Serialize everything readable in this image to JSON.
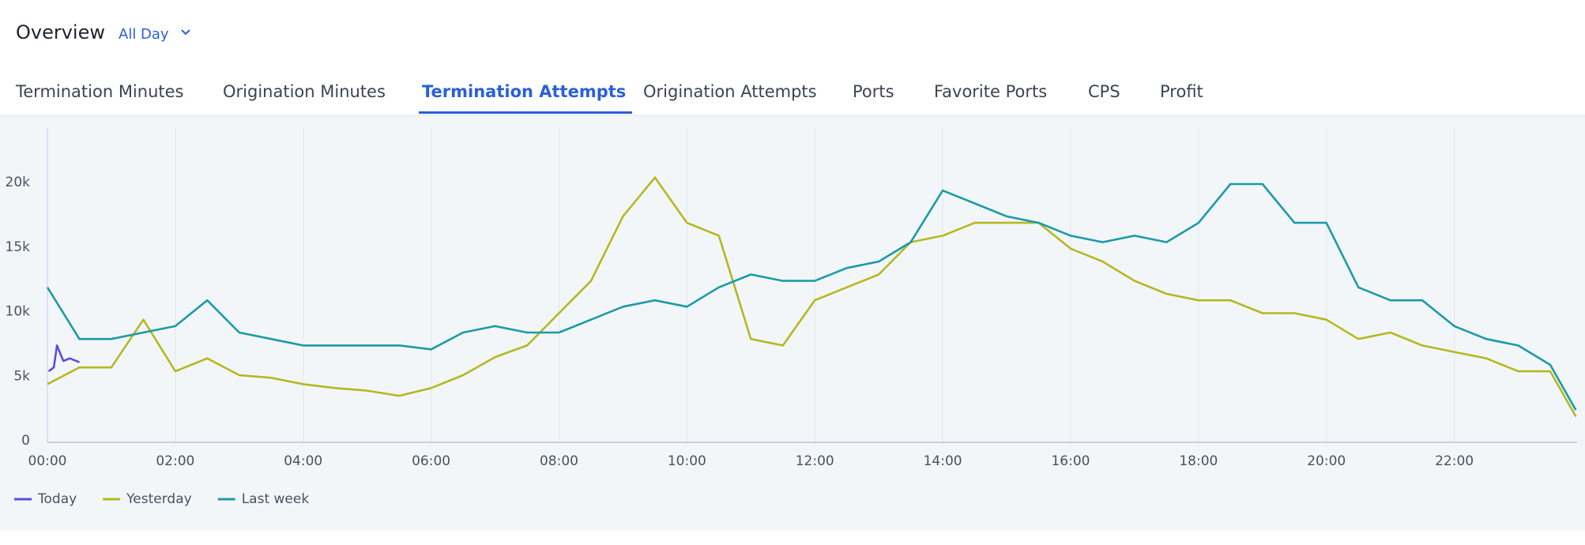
{
  "header": {
    "title": "Overview",
    "range": "All Day"
  },
  "tabs": [
    "Termination Minutes",
    "Origination Minutes",
    "Termination Attempts",
    "Origination Attempts",
    "Ports",
    "Favorite Ports",
    "CPS",
    "Profit"
  ],
  "active_tab": 2,
  "chart_data": {
    "type": "line",
    "xlim": [
      0,
      23.92
    ],
    "xticks": [
      {
        "value": 0,
        "label": "00:00"
      },
      {
        "value": 2,
        "label": "02:00"
      },
      {
        "value": 4,
        "label": "04:00"
      },
      {
        "value": 6,
        "label": "06:00"
      },
      {
        "value": 8,
        "label": "08:00"
      },
      {
        "value": 10,
        "label": "10:00"
      },
      {
        "value": 12,
        "label": "12:00"
      },
      {
        "value": 14,
        "label": "14:00"
      },
      {
        "value": 16,
        "label": "16:00"
      },
      {
        "value": 18,
        "label": "18:00"
      },
      {
        "value": 20,
        "label": "20:00"
      },
      {
        "value": 22,
        "label": "22:00"
      }
    ],
    "ylim": [
      0,
      24000
    ],
    "yticks": [
      0,
      {
        "value": 5000,
        "label": "5k"
      },
      {
        "value": 10000,
        "label": "10k"
      },
      {
        "value": 15000,
        "label": "15k"
      },
      {
        "value": 20000,
        "label": "20k"
      }
    ],
    "grid": "x",
    "legend": "bottom-left",
    "series": [
      {
        "name": "Today",
        "color": "#5b4fdc",
        "x": [
          0.02,
          0.1,
          0.15,
          0.25,
          0.35,
          0.5
        ],
        "values": [
          5500,
          5800,
          7500,
          6300,
          6500,
          6200
        ]
      },
      {
        "name": "Yesterday",
        "color": "#b5b81f",
        "x": [
          0,
          0.5,
          1,
          1.5,
          2,
          2.5,
          3,
          3.5,
          4,
          4.5,
          5,
          5.5,
          6,
          6.5,
          7,
          7.5,
          8,
          8.5,
          9,
          9.5,
          10,
          10.5,
          11,
          11.5,
          12,
          12.5,
          13,
          13.5,
          14,
          14.5,
          15,
          15.5,
          16,
          16.5,
          17,
          17.5,
          18,
          18.5,
          19,
          19.5,
          20,
          20.5,
          21,
          21.5,
          22,
          22.5,
          23,
          23.5,
          23.9
        ],
        "values": [
          4500,
          5800,
          5800,
          9500,
          5500,
          6500,
          5200,
          5000,
          4500,
          4200,
          4000,
          3600,
          4200,
          5200,
          6600,
          7500,
          10000,
          12500,
          17500,
          20500,
          17000,
          16000,
          8000,
          7500,
          11000,
          12000,
          13000,
          15500,
          16000,
          17000,
          17000,
          17000,
          15000,
          14000,
          12500,
          11500,
          11000,
          11000,
          10000,
          10000,
          9500,
          8000,
          8500,
          7500,
          7000,
          6500,
          5500,
          5500,
          2000
        ]
      },
      {
        "name": "Last week",
        "color": "#1a9ba8",
        "x": [
          0,
          0.5,
          1,
          1.5,
          2,
          2.5,
          3,
          3.5,
          4,
          4.5,
          5,
          5.5,
          6,
          6.5,
          7,
          7.5,
          8,
          8.5,
          9,
          9.5,
          10,
          10.5,
          11,
          11.5,
          12,
          12.5,
          13,
          13.5,
          14,
          14.5,
          15,
          15.5,
          16,
          16.5,
          17,
          17.5,
          18,
          18.5,
          19,
          19.5,
          20,
          20.5,
          21,
          21.5,
          22,
          22.5,
          23,
          23.5,
          23.9
        ],
        "values": [
          12000,
          8000,
          8000,
          8500,
          9000,
          11000,
          8500,
          8000,
          7500,
          7500,
          7500,
          7500,
          7200,
          8500,
          9000,
          8500,
          8500,
          9500,
          10500,
          11000,
          10500,
          12000,
          13000,
          12500,
          12500,
          13500,
          14000,
          15500,
          19500,
          18500,
          17500,
          17000,
          16000,
          15500,
          16000,
          15500,
          17000,
          20000,
          20000,
          17000,
          17000,
          12000,
          11000,
          11000,
          9000,
          8000,
          7500,
          6000,
          2500
        ]
      }
    ]
  }
}
